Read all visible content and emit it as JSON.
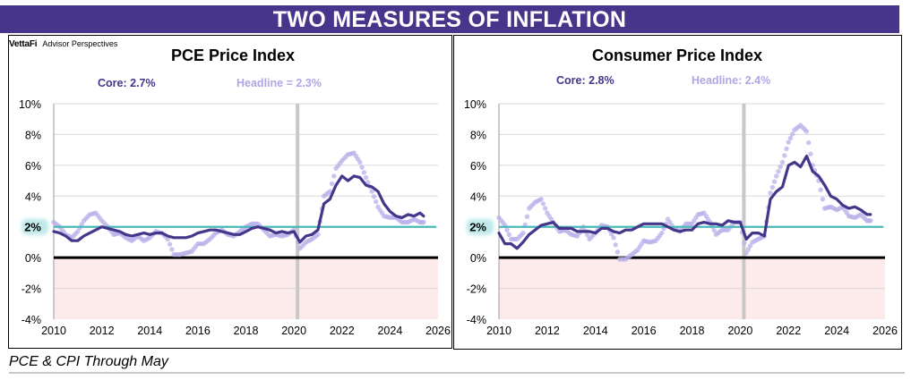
{
  "banner": {
    "title": "TWO MEASURES OF INFLATION"
  },
  "brand": {
    "name": "VettaFi",
    "sub": "Advisor Perspectives"
  },
  "footer": {
    "note": "PCE & CPI Through May"
  },
  "colors": {
    "core": "#46358a",
    "headline": "#b9b0ea",
    "target": "#4ab8b8",
    "recession": "#c8c8c8",
    "negative_fill": "#fdeaea",
    "banner": "#46358a"
  },
  "chart_data": [
    {
      "type": "line",
      "title": "PCE Price Index",
      "legend": {
        "core_label": "Core: 2.7%",
        "headline_label": "Headline = 2.3%",
        "placement": "top"
      },
      "xlabel": "",
      "ylabel": "",
      "xlim": [
        2010,
        2026
      ],
      "ylim": [
        -4,
        10
      ],
      "x_ticks": [
        "2010",
        "2012",
        "2014",
        "2016",
        "2018",
        "2020",
        "2022",
        "2024",
        "2026"
      ],
      "y_ticks": [
        "-4%",
        "-2%",
        "0%",
        "2%",
        "4%",
        "6%",
        "8%",
        "10%"
      ],
      "highlight_tick": "2%",
      "target_line": 2,
      "recession_x": 2020.15,
      "grid": true,
      "series": [
        {
          "name": "Core",
          "style": "line",
          "x": [
            2010,
            2010.25,
            2010.5,
            2010.75,
            2011,
            2011.25,
            2011.5,
            2011.75,
            2012,
            2012.25,
            2012.5,
            2012.75,
            2013,
            2013.25,
            2013.5,
            2013.75,
            2014,
            2014.25,
            2014.5,
            2014.75,
            2015,
            2015.25,
            2015.5,
            2015.75,
            2016,
            2016.25,
            2016.5,
            2016.75,
            2017,
            2017.25,
            2017.5,
            2017.75,
            2018,
            2018.25,
            2018.5,
            2018.75,
            2019,
            2019.25,
            2019.5,
            2019.75,
            2020,
            2020.25,
            2020.5,
            2020.75,
            2021,
            2021.25,
            2021.5,
            2021.75,
            2022,
            2022.25,
            2022.5,
            2022.75,
            2023,
            2023.25,
            2023.5,
            2023.75,
            2024,
            2024.25,
            2024.5,
            2024.75,
            2025,
            2025.25,
            2025.4
          ],
          "values": [
            1.7,
            1.6,
            1.4,
            1.1,
            1.1,
            1.4,
            1.6,
            1.8,
            2.0,
            1.9,
            1.8,
            1.7,
            1.5,
            1.4,
            1.5,
            1.6,
            1.5,
            1.6,
            1.6,
            1.4,
            1.3,
            1.3,
            1.3,
            1.4,
            1.6,
            1.7,
            1.8,
            1.8,
            1.7,
            1.6,
            1.5,
            1.5,
            1.7,
            1.9,
            2.0,
            1.9,
            1.8,
            1.6,
            1.7,
            1.6,
            1.7,
            1.0,
            1.4,
            1.5,
            1.8,
            3.5,
            3.8,
            4.7,
            5.3,
            5.0,
            5.3,
            5.2,
            4.7,
            4.6,
            4.3,
            3.5,
            3.0,
            2.7,
            2.6,
            2.8,
            2.7,
            2.9,
            2.7
          ]
        },
        {
          "name": "Headline",
          "style": "dots",
          "x": [
            2010,
            2010.25,
            2010.5,
            2010.75,
            2011,
            2011.25,
            2011.5,
            2011.75,
            2012,
            2012.25,
            2012.5,
            2012.75,
            2013,
            2013.25,
            2013.5,
            2013.75,
            2014,
            2014.25,
            2014.5,
            2014.75,
            2015,
            2015.25,
            2015.5,
            2015.75,
            2016,
            2016.25,
            2016.5,
            2016.75,
            2017,
            2017.25,
            2017.5,
            2017.75,
            2018,
            2018.25,
            2018.5,
            2018.75,
            2019,
            2019.25,
            2019.5,
            2019.75,
            2020,
            2020.25,
            2020.5,
            2020.75,
            2021,
            2021.25,
            2021.5,
            2021.75,
            2022,
            2022.25,
            2022.5,
            2022.75,
            2023,
            2023.25,
            2023.5,
            2023.75,
            2024,
            2024.25,
            2024.5,
            2024.75,
            2025,
            2025.25,
            2025.4
          ],
          "values": [
            2.3,
            2.0,
            1.5,
            1.3,
            1.7,
            2.4,
            2.8,
            2.9,
            2.4,
            2.0,
            1.5,
            1.6,
            1.3,
            1.1,
            1.4,
            1.1,
            1.3,
            1.7,
            1.6,
            1.2,
            0.2,
            0.2,
            0.3,
            0.4,
            0.9,
            0.9,
            1.2,
            1.6,
            1.8,
            1.5,
            1.4,
            1.7,
            2.0,
            2.2,
            2.2,
            1.8,
            1.4,
            1.5,
            1.4,
            1.5,
            1.8,
            0.6,
            1.0,
            1.2,
            1.5,
            4.0,
            4.3,
            5.8,
            6.3,
            6.7,
            6.8,
            6.2,
            5.2,
            4.3,
            3.3,
            2.7,
            2.6,
            2.6,
            2.3,
            2.3,
            2.5,
            2.3,
            2.3
          ]
        }
      ]
    },
    {
      "type": "line",
      "title": "Consumer Price Index",
      "legend": {
        "core_label": "Core: 2.8%",
        "headline_label": "Headline: 2.4%",
        "placement": "top"
      },
      "xlabel": "",
      "ylabel": "",
      "xlim": [
        2010,
        2026
      ],
      "ylim": [
        -4,
        10
      ],
      "x_ticks": [
        "2010",
        "2012",
        "2014",
        "2016",
        "2018",
        "2020",
        "2022",
        "2024",
        "2026"
      ],
      "y_ticks": [
        "-4%",
        "-2%",
        "0%",
        "2%",
        "4%",
        "6%",
        "8%",
        "10%"
      ],
      "highlight_tick": "2%",
      "target_line": 2,
      "recession_x": 2020.15,
      "grid": true,
      "series": [
        {
          "name": "Core",
          "style": "line",
          "x": [
            2010,
            2010.25,
            2010.5,
            2010.75,
            2011,
            2011.25,
            2011.5,
            2011.75,
            2012,
            2012.25,
            2012.5,
            2012.75,
            2013,
            2013.25,
            2013.5,
            2013.75,
            2014,
            2014.25,
            2014.5,
            2014.75,
            2015,
            2015.25,
            2015.5,
            2015.75,
            2016,
            2016.25,
            2016.5,
            2016.75,
            2017,
            2017.25,
            2017.5,
            2017.75,
            2018,
            2018.25,
            2018.5,
            2018.75,
            2019,
            2019.25,
            2019.5,
            2019.75,
            2020,
            2020.25,
            2020.5,
            2020.75,
            2021,
            2021.25,
            2021.5,
            2021.75,
            2022,
            2022.25,
            2022.5,
            2022.75,
            2023,
            2023.25,
            2023.5,
            2023.75,
            2024,
            2024.25,
            2024.5,
            2024.75,
            2025,
            2025.25,
            2025.4
          ],
          "values": [
            1.6,
            0.9,
            0.9,
            0.6,
            1.0,
            1.5,
            1.8,
            2.1,
            2.2,
            2.3,
            1.9,
            1.9,
            1.9,
            1.7,
            1.7,
            1.7,
            1.6,
            1.9,
            1.9,
            1.7,
            1.6,
            1.8,
            1.8,
            2.0,
            2.2,
            2.2,
            2.2,
            2.2,
            2.0,
            1.8,
            1.7,
            1.8,
            1.8,
            2.2,
            2.3,
            2.2,
            2.2,
            2.1,
            2.4,
            2.3,
            2.3,
            1.2,
            1.6,
            1.6,
            1.4,
            3.8,
            4.3,
            4.6,
            6.0,
            6.2,
            5.9,
            6.6,
            5.6,
            5.3,
            4.7,
            4.0,
            3.8,
            3.4,
            3.2,
            3.3,
            3.1,
            2.8,
            2.8
          ]
        },
        {
          "name": "Headline",
          "style": "dots",
          "x": [
            2010,
            2010.25,
            2010.5,
            2010.75,
            2011,
            2011.25,
            2011.5,
            2011.75,
            2012,
            2012.25,
            2012.5,
            2012.75,
            2013,
            2013.25,
            2013.5,
            2013.75,
            2014,
            2014.25,
            2014.5,
            2014.75,
            2015,
            2015.25,
            2015.5,
            2015.75,
            2016,
            2016.25,
            2016.5,
            2016.75,
            2017,
            2017.25,
            2017.5,
            2017.75,
            2018,
            2018.25,
            2018.5,
            2018.75,
            2019,
            2019.25,
            2019.5,
            2019.75,
            2020,
            2020.25,
            2020.5,
            2020.75,
            2021,
            2021.25,
            2021.5,
            2021.75,
            2022,
            2022.25,
            2022.5,
            2022.75,
            2023,
            2023.25,
            2023.5,
            2023.75,
            2024,
            2024.25,
            2024.5,
            2024.75,
            2025,
            2025.25,
            2025.4
          ],
          "values": [
            2.6,
            2.1,
            1.2,
            1.2,
            1.6,
            3.2,
            3.6,
            3.8,
            2.9,
            2.3,
            1.7,
            1.8,
            1.5,
            1.4,
            2.0,
            1.2,
            1.6,
            2.1,
            2.0,
            1.3,
            -0.1,
            -0.1,
            0.2,
            0.5,
            1.1,
            1.0,
            1.1,
            1.6,
            2.5,
            1.9,
            1.7,
            2.2,
            2.2,
            2.8,
            2.9,
            2.3,
            1.5,
            1.8,
            1.8,
            2.3,
            2.3,
            0.3,
            1.0,
            1.2,
            1.4,
            4.2,
            5.3,
            6.2,
            7.5,
            8.3,
            8.6,
            8.2,
            6.0,
            5.0,
            3.2,
            3.3,
            3.1,
            3.3,
            2.7,
            2.6,
            2.8,
            2.4,
            2.4
          ]
        }
      ]
    }
  ]
}
